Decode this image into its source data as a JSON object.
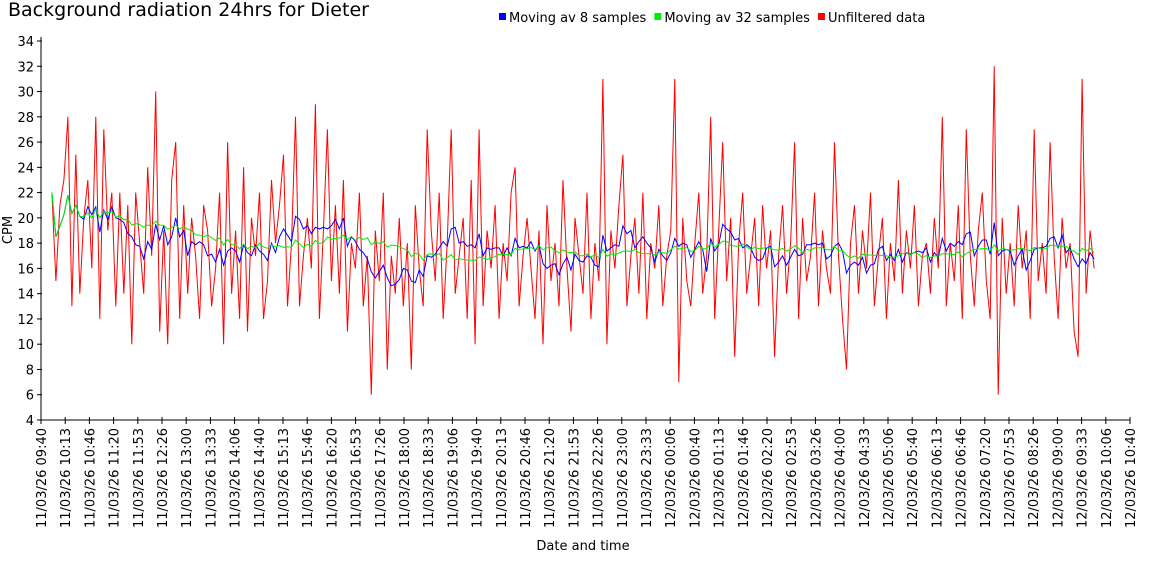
{
  "chart_data": {
    "type": "line",
    "title": "Background radiation 24hrs for Dieter",
    "xlabel": "Date and time",
    "ylabel": "CPM",
    "ylim": [
      4,
      34
    ],
    "yticks": [
      4,
      6,
      8,
      10,
      12,
      14,
      16,
      18,
      20,
      22,
      24,
      26,
      28,
      30,
      32,
      34
    ],
    "xlim_minutes_from_start": [
      0,
      1500
    ],
    "x_start_minute": 15,
    "x_step_minutes": 5.5,
    "xtick_labels": [
      "11/03/26 09:40",
      "11/03/26 10:13",
      "11/03/26 10:46",
      "11/03/26 11:20",
      "11/03/26 11:53",
      "11/03/26 12:26",
      "11/03/26 13:00",
      "11/03/26 13:33",
      "11/03/26 14:06",
      "11/03/26 14:40",
      "11/03/26 15:13",
      "11/03/26 15:46",
      "11/03/26 16:20",
      "11/03/26 16:53",
      "11/03/26 17:26",
      "11/03/26 18:00",
      "11/03/26 18:33",
      "11/03/26 19:06",
      "11/03/26 19:40",
      "11/03/26 20:13",
      "11/03/26 20:46",
      "11/03/26 21:20",
      "11/03/26 21:53",
      "11/03/26 22:26",
      "11/03/26 23:00",
      "11/03/26 23:33",
      "12/03/26 00:06",
      "12/03/26 00:40",
      "12/03/26 01:13",
      "12/03/26 01:46",
      "12/03/26 02:20",
      "12/03/26 02:53",
      "12/03/26 03:26",
      "12/03/26 04:00",
      "12/03/26 04:33",
      "12/03/26 05:06",
      "12/03/26 05:40",
      "12/03/26 06:13",
      "12/03/26 06:46",
      "12/03/26 07:20",
      "12/03/26 07:53",
      "12/03/26 08:26",
      "12/03/26 09:00",
      "12/03/26 09:33",
      "12/03/26 10:06",
      "12/03/26 10:40"
    ],
    "legend_position": "top-center",
    "grid": false,
    "series": [
      {
        "name": "Moving av 8 samples",
        "color": "#0000ff",
        "window": 8,
        "derived_from": "Unfiltered data"
      },
      {
        "name": "Moving av 32 samples",
        "color": "#00ee00",
        "window": 32,
        "derived_from": "Unfiltered data"
      },
      {
        "name": "Unfiltered data",
        "color": "#ff0000",
        "values": [
          22,
          15,
          21,
          23,
          28,
          13,
          25,
          14,
          20,
          23,
          16,
          28,
          12,
          27,
          19,
          22,
          13,
          22,
          14,
          21,
          10,
          22,
          18,
          14,
          24,
          17,
          30,
          11,
          19,
          10,
          23,
          26,
          12,
          21,
          14,
          20,
          17,
          12,
          21,
          19,
          13,
          16,
          22,
          10,
          26,
          14,
          19,
          12,
          24,
          11,
          20,
          17,
          22,
          12,
          15,
          23,
          18,
          21,
          25,
          13,
          18,
          28,
          13,
          17,
          20,
          16,
          29,
          12,
          19,
          27,
          15,
          21,
          14,
          23,
          11,
          18,
          16,
          22,
          13,
          17,
          6,
          19,
          15,
          22,
          8,
          17,
          14,
          20,
          13,
          18,
          8,
          21,
          16,
          13,
          27,
          19,
          15,
          22,
          12,
          18,
          27,
          14,
          17,
          20,
          12,
          23,
          10,
          27,
          13,
          19,
          16,
          21,
          12,
          18,
          15,
          22,
          24,
          13,
          17,
          20,
          16,
          12,
          19,
          10,
          21,
          15,
          18,
          13,
          23,
          16,
          11,
          20,
          17,
          14,
          22,
          12,
          18,
          15,
          31,
          10,
          19,
          16,
          21,
          25,
          13,
          17,
          20,
          14,
          22,
          12,
          18,
          16,
          21,
          13,
          17,
          19,
          31,
          7,
          20,
          15,
          13,
          18,
          22,
          14,
          17,
          28,
          12,
          19,
          26,
          15,
          20,
          9,
          18,
          22,
          14,
          17,
          20,
          13,
          21,
          16,
          19,
          9,
          17,
          21,
          14,
          18,
          26,
          12,
          20,
          15,
          17,
          22,
          13,
          19,
          16,
          14,
          26,
          17,
          12,
          8,
          18,
          21,
          14,
          19,
          16,
          22,
          13,
          17,
          20,
          12,
          18,
          15,
          23,
          14,
          19,
          16,
          21,
          13,
          17,
          18,
          14,
          20,
          16,
          28,
          13,
          18,
          15,
          21,
          12,
          27,
          17,
          13,
          19,
          22,
          15,
          12,
          32,
          6,
          20,
          14,
          18,
          13,
          21,
          16,
          19,
          12,
          27,
          15,
          18,
          14,
          26,
          17,
          12,
          20,
          16,
          18,
          11,
          9,
          31,
          14,
          19,
          16
        ]
      }
    ]
  }
}
